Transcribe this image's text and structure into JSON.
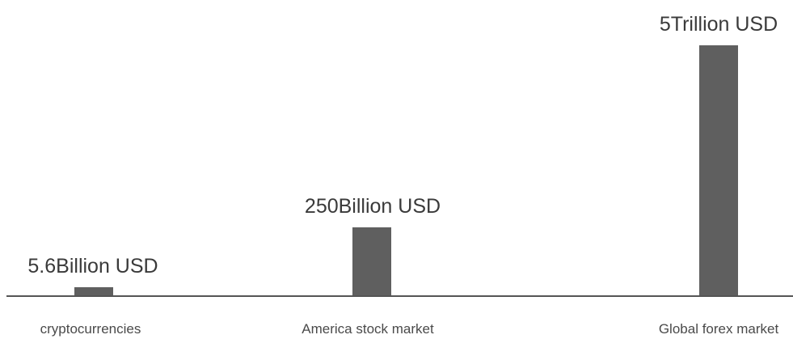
{
  "chart_data": {
    "type": "bar",
    "title": "",
    "xlabel": "",
    "ylabel": "",
    "categories": [
      "cryptocurrencies",
      "America stock market",
      "Global forex market"
    ],
    "values": [
      5.6,
      250,
      5000
    ],
    "value_unit": "Billion USD",
    "data_labels": [
      "5.6Billion USD",
      "250Billion USD",
      "5Trillion USD"
    ],
    "scale_note": "bar heights not linear to values",
    "display_levels": [
      0.035,
      0.273,
      1.0
    ],
    "grid": false,
    "legend": "none",
    "colors": {
      "bar": "#5f5f5f",
      "axis": "#555555",
      "text": "#3a3a3a"
    }
  }
}
